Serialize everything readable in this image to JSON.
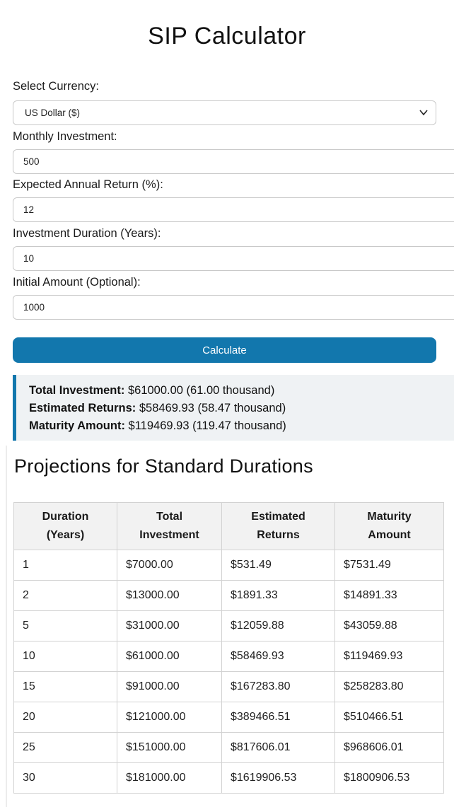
{
  "page": {
    "title": "SIP Calculator"
  },
  "form": {
    "currency": {
      "label": "Select Currency:",
      "value": "US Dollar ($)"
    },
    "monthly_investment": {
      "label": "Monthly Investment:",
      "value": "500"
    },
    "annual_return": {
      "label": "Expected Annual Return (%):",
      "value": "12"
    },
    "duration": {
      "label": "Investment Duration (Years):",
      "value": "10"
    },
    "initial_amount": {
      "label": "Initial Amount (Optional):",
      "value": "1000"
    },
    "calculate_label": "Calculate"
  },
  "results": {
    "items": [
      {
        "label": "Total Investment:",
        "value": " $61000.00 (61.00 thousand)"
      },
      {
        "label": "Estimated Returns:",
        "value": " $58469.93 (58.47 thousand)"
      },
      {
        "label": "Maturity Amount:",
        "value": " $119469.93 (119.47 thousand)"
      }
    ]
  },
  "projections": {
    "heading": "Projections for Standard Durations",
    "table": {
      "headers": [
        "Duration\n(Years)",
        "Total\nInvestment",
        "Estimated\nReturns",
        "Maturity\nAmount"
      ],
      "rows": [
        [
          "1",
          "$7000.00",
          "$531.49",
          "$7531.49"
        ],
        [
          "2",
          "$13000.00",
          "$1891.33",
          "$14891.33"
        ],
        [
          "5",
          "$31000.00",
          "$12059.88",
          "$43059.88"
        ],
        [
          "10",
          "$61000.00",
          "$58469.93",
          "$119469.93"
        ],
        [
          "15",
          "$91000.00",
          "$167283.80",
          "$258283.80"
        ],
        [
          "20",
          "$121000.00",
          "$389466.51",
          "$510466.51"
        ],
        [
          "25",
          "$151000.00",
          "$817606.01",
          "$968606.01"
        ],
        [
          "30",
          "$181000.00",
          "$1619906.53",
          "$1800906.53"
        ]
      ]
    }
  },
  "colors": {
    "accent": "#1277AD",
    "results_bg": "#EFF2F4",
    "table_header_bg": "#F2F2F2",
    "border": "#D2D2D2"
  }
}
